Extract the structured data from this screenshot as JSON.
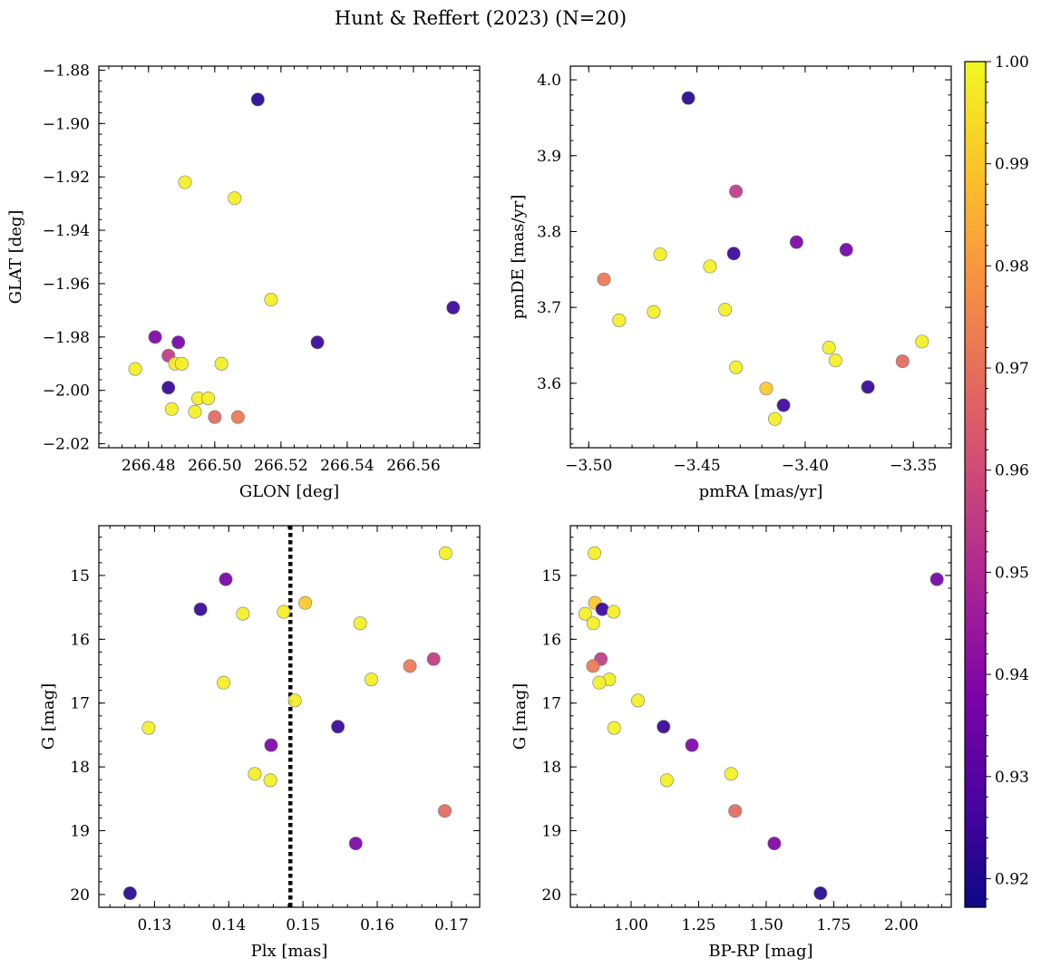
{
  "figure": {
    "title": "Hunt & Reffert (2023) (N=20)"
  },
  "colorbar": {
    "min": 0.9172,
    "max": 1.0,
    "ticks": [
      0.92,
      0.93,
      0.94,
      0.95,
      0.96,
      0.97,
      0.98,
      0.99,
      1.0
    ],
    "tick_labels": [
      "0.92",
      "0.93",
      "0.94",
      "0.95",
      "0.96",
      "0.97",
      "0.98",
      "0.99",
      "1.00"
    ],
    "colormap": "plasma"
  },
  "chart_data": [
    {
      "type": "scatter",
      "title": "",
      "xlabel": "GLON [deg]",
      "ylabel": "GLAT [deg]",
      "xlim": [
        266.465,
        266.58
      ],
      "ylim": [
        -2.0215,
        -1.8785
      ],
      "y_inverted": false,
      "xticks": [
        266.48,
        266.5,
        266.52,
        266.54,
        266.56
      ],
      "xtick_labels": [
        "266.48",
        "266.50",
        "266.52",
        "266.54",
        "266.56"
      ],
      "yticks": [
        -1.88,
        -1.9,
        -1.92,
        -1.94,
        -1.96,
        -1.98,
        -2.0,
        -2.02
      ],
      "ytick_labels": [
        "−1.88",
        "−1.90",
        "−1.92",
        "−1.94",
        "−1.96",
        "−1.98",
        "−2.00",
        "−2.02"
      ],
      "x": [
        266.513,
        266.491,
        266.506,
        266.517,
        266.572,
        266.531,
        266.476,
        266.482,
        266.489,
        266.486,
        266.488,
        266.49,
        266.502,
        266.486,
        266.495,
        266.498,
        266.487,
        266.494,
        266.5,
        266.507
      ],
      "y": [
        -1.891,
        -1.922,
        -1.928,
        -1.966,
        -1.969,
        -1.982,
        -1.992,
        -1.98,
        -1.982,
        -1.987,
        -1.99,
        -1.99,
        -1.99,
        -1.999,
        -2.003,
        -2.003,
        -2.007,
        -2.008,
        -2.01,
        -2.01
      ],
      "c": [
        0.921,
        0.998,
        0.998,
        0.998,
        0.925,
        0.924,
        0.998,
        0.938,
        0.936,
        0.955,
        0.997,
        0.998,
        0.998,
        0.924,
        0.998,
        0.998,
        0.998,
        0.998,
        0.968,
        0.972
      ]
    },
    {
      "type": "scatter",
      "title": "",
      "xlabel": "pmRA [mas/yr]",
      "ylabel": "pmDE [mas/yr]",
      "xlim": [
        -3.5085,
        -3.3325
      ],
      "ylim": [
        3.515,
        4.018
      ],
      "y_inverted": false,
      "xticks": [
        -3.5,
        -3.45,
        -3.4,
        -3.35
      ],
      "xtick_labels": [
        "−3.50",
        "−3.45",
        "−3.40",
        "−3.35"
      ],
      "yticks": [
        3.6,
        3.7,
        3.8,
        3.9,
        4.0
      ],
      "ytick_labels": [
        "3.6",
        "3.7",
        "3.8",
        "3.9",
        "4.0"
      ],
      "x": [
        -3.454,
        -3.432,
        -3.433,
        -3.404,
        -3.381,
        -3.467,
        -3.444,
        -3.493,
        -3.437,
        -3.47,
        -3.486,
        -3.389,
        -3.346,
        -3.386,
        -3.432,
        -3.355,
        -3.371,
        -3.418,
        -3.41,
        -3.414
      ],
      "y": [
        3.976,
        3.853,
        3.771,
        3.786,
        3.776,
        3.77,
        3.754,
        3.737,
        3.697,
        3.694,
        3.683,
        3.647,
        3.655,
        3.63,
        3.621,
        3.629,
        3.595,
        3.593,
        3.571,
        3.553
      ],
      "c": [
        0.921,
        0.955,
        0.924,
        0.938,
        0.936,
        0.998,
        0.998,
        0.972,
        0.998,
        0.998,
        0.998,
        0.998,
        0.998,
        0.998,
        0.998,
        0.968,
        0.924,
        0.99,
        0.925,
        0.998
      ]
    },
    {
      "type": "scatter",
      "title": "",
      "xlabel": "Plx [mas]",
      "ylabel": "G [mag]",
      "xlim": [
        0.1225,
        0.1738
      ],
      "ylim": [
        20.2,
        14.22
      ],
      "y_inverted": true,
      "xticks": [
        0.13,
        0.14,
        0.15,
        0.16,
        0.17
      ],
      "xtick_labels": [
        "0.13",
        "0.14",
        "0.15",
        "0.16",
        "0.17"
      ],
      "yticks": [
        15,
        16,
        17,
        18,
        19,
        20
      ],
      "ytick_labels": [
        "15",
        "16",
        "17",
        "18",
        "19",
        "20"
      ],
      "vline": 0.1483,
      "x": [
        0.1692,
        0.1396,
        0.1362,
        0.1503,
        0.1419,
        0.1474,
        0.1577,
        0.1676,
        0.1644,
        0.1592,
        0.1393,
        0.1489,
        0.1292,
        0.1547,
        0.1457,
        0.1435,
        0.1456,
        0.1691,
        0.1571,
        0.1267
      ],
      "y": [
        14.65,
        15.06,
        15.53,
        15.43,
        15.6,
        15.57,
        15.75,
        16.31,
        16.42,
        16.63,
        16.68,
        16.96,
        17.39,
        17.37,
        17.66,
        18.11,
        18.21,
        18.69,
        19.2,
        19.98
      ],
      "c": [
        0.998,
        0.936,
        0.924,
        0.99,
        0.998,
        0.998,
        0.998,
        0.955,
        0.972,
        0.998,
        0.998,
        0.998,
        0.998,
        0.924,
        0.938,
        0.998,
        0.998,
        0.968,
        0.938,
        0.921
      ]
    },
    {
      "type": "scatter",
      "title": "",
      "xlabel": "BP-RP [mag]",
      "ylabel": "G [mag]",
      "xlim": [
        0.775,
        2.185
      ],
      "ylim": [
        20.2,
        14.22
      ],
      "y_inverted": true,
      "xticks": [
        1.0,
        1.25,
        1.5,
        1.75,
        2.0
      ],
      "xtick_labels": [
        "1.00",
        "1.25",
        "1.50",
        "1.75",
        "2.00"
      ],
      "yticks": [
        15,
        16,
        17,
        18,
        19,
        20
      ],
      "ytick_labels": [
        "15",
        "16",
        "17",
        "18",
        "19",
        "20"
      ],
      "x": [
        0.864,
        0.866,
        0.893,
        0.83,
        0.935,
        0.86,
        0.888,
        0.859,
        0.919,
        0.882,
        1.025,
        0.937,
        2.132,
        1.12,
        1.225,
        1.37,
        1.132,
        1.385,
        1.53,
        1.701
      ],
      "y": [
        14.65,
        15.43,
        15.53,
        15.6,
        15.57,
        15.75,
        16.31,
        16.42,
        16.63,
        16.68,
        16.96,
        17.39,
        15.06,
        17.37,
        17.66,
        18.11,
        18.21,
        18.69,
        19.2,
        19.98
      ],
      "c": [
        0.998,
        0.99,
        0.924,
        0.998,
        0.998,
        0.998,
        0.955,
        0.972,
        0.998,
        0.998,
        0.998,
        0.998,
        0.936,
        0.924,
        0.938,
        0.998,
        0.998,
        0.968,
        0.938,
        0.921
      ]
    }
  ]
}
